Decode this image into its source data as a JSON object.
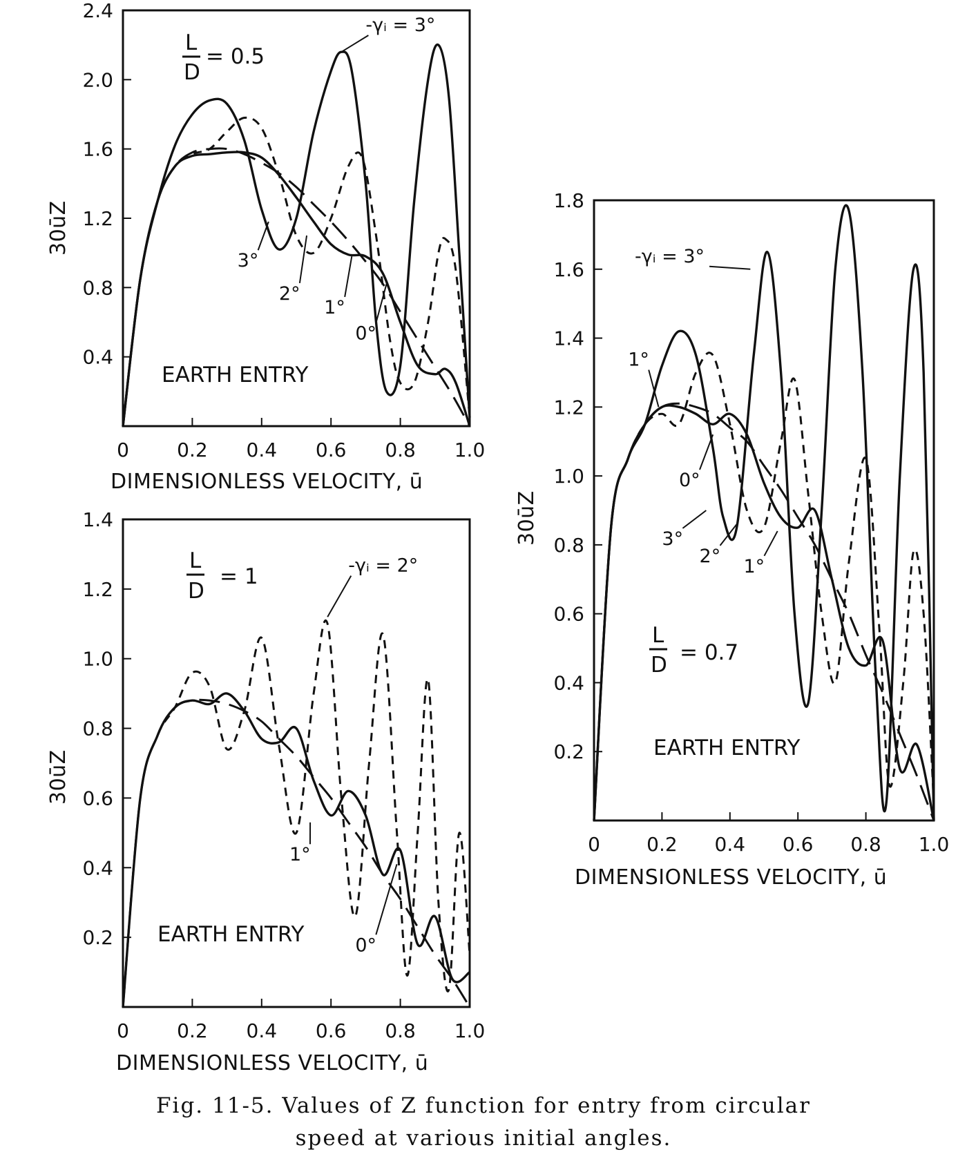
{
  "figure": {
    "caption_line1": "Fig. 11-5.  Values of Z function for entry from circular",
    "caption_line2": "speed at various initial angles."
  },
  "chart_data": [
    {
      "id": "ld05",
      "type": "line",
      "note": "EARTH ENTRY",
      "ld_value": "= 0.5",
      "xlabel": "DIMENSIONLESS VELOCITY, ū",
      "ylabel": "30ūZ",
      "xlim": [
        0,
        1.0
      ],
      "ylim": [
        0,
        2.4
      ],
      "xticks": [
        "0",
        "0.2",
        "0.4",
        "0.6",
        "0.8",
        "1.0"
      ],
      "yticks": [
        "0.4",
        "0.8",
        "1.2",
        "1.6",
        "2.0",
        "2.4"
      ],
      "series": [
        {
          "name": "3°",
          "style": "solid",
          "x": [
            0.0,
            0.05,
            0.1,
            0.15,
            0.2,
            0.25,
            0.3,
            0.35,
            0.4,
            0.45,
            0.5,
            0.55,
            0.6,
            0.63,
            0.66,
            0.7,
            0.73,
            0.76,
            0.8,
            0.84,
            0.88,
            0.91,
            0.94,
            0.97,
            1.0
          ],
          "y": [
            0.0,
            0.85,
            1.3,
            1.62,
            1.8,
            1.88,
            1.86,
            1.65,
            1.25,
            1.02,
            1.2,
            1.7,
            2.05,
            2.16,
            2.05,
            1.4,
            0.6,
            0.2,
            0.35,
            1.3,
            2.0,
            2.2,
            1.9,
            1.0,
            0.05
          ]
        },
        {
          "name": "2°",
          "style": "dashed",
          "x": [
            0.0,
            0.05,
            0.1,
            0.15,
            0.2,
            0.25,
            0.3,
            0.35,
            0.4,
            0.45,
            0.5,
            0.55,
            0.6,
            0.65,
            0.69,
            0.73,
            0.77,
            0.8,
            0.84,
            0.88,
            0.91,
            0.93,
            0.96,
            1.0
          ],
          "y": [
            0.0,
            0.85,
            1.3,
            1.5,
            1.57,
            1.6,
            1.7,
            1.78,
            1.72,
            1.45,
            1.1,
            1.0,
            1.2,
            1.5,
            1.55,
            1.1,
            0.5,
            0.25,
            0.25,
            0.6,
            1.0,
            1.08,
            0.9,
            0.05
          ]
        },
        {
          "name": "1°",
          "style": "solid",
          "x": [
            0.0,
            0.05,
            0.1,
            0.15,
            0.2,
            0.25,
            0.3,
            0.35,
            0.4,
            0.45,
            0.5,
            0.55,
            0.6,
            0.65,
            0.7,
            0.75,
            0.8,
            0.85,
            0.9,
            0.93,
            0.96,
            1.0
          ],
          "y": [
            0.0,
            0.85,
            1.3,
            1.5,
            1.56,
            1.57,
            1.58,
            1.58,
            1.55,
            1.45,
            1.32,
            1.18,
            1.05,
            0.99,
            0.98,
            0.88,
            0.6,
            0.35,
            0.3,
            0.33,
            0.25,
            0.0
          ]
        },
        {
          "name": "0°",
          "style": "longdash",
          "x": [
            0.0,
            0.05,
            0.1,
            0.15,
            0.2,
            0.25,
            0.3,
            0.35,
            0.4,
            0.45,
            0.5,
            0.55,
            0.6,
            0.65,
            0.7,
            0.75,
            0.8,
            0.85,
            0.9,
            0.95,
            1.0
          ],
          "y": [
            0.0,
            0.85,
            1.3,
            1.5,
            1.58,
            1.6,
            1.6,
            1.57,
            1.52,
            1.46,
            1.38,
            1.28,
            1.18,
            1.07,
            0.95,
            0.82,
            0.66,
            0.5,
            0.34,
            0.18,
            0.0
          ]
        }
      ],
      "annotations": [
        {
          "text": "-γᵢ = 3°",
          "x": 0.7,
          "y": 2.28,
          "tx": 0.63,
          "ty": 2.16
        },
        {
          "text": "3°",
          "x": 0.33,
          "y": 0.92,
          "tx": 0.42,
          "ty": 1.18
        },
        {
          "text": "2°",
          "x": 0.45,
          "y": 0.73,
          "tx": 0.53,
          "ty": 1.1
        },
        {
          "text": "1°",
          "x": 0.58,
          "y": 0.65,
          "tx": 0.66,
          "ty": 0.98
        },
        {
          "text": "0°",
          "x": 0.67,
          "y": 0.5,
          "tx": 0.76,
          "ty": 0.82
        }
      ]
    },
    {
      "id": "ld1",
      "type": "line",
      "note": "EARTH ENTRY",
      "ld_value": "= 1",
      "xlabel": "DIMENSIONLESS VELOCITY, ū",
      "ylabel": "30ūZ",
      "xlim": [
        0,
        1.0
      ],
      "ylim": [
        0,
        1.4
      ],
      "xticks": [
        "0",
        "0.2",
        "0.4",
        "0.6",
        "0.8",
        "1.0"
      ],
      "yticks": [
        "0.2",
        "0.4",
        "0.6",
        "0.8",
        "1.0",
        "1.2",
        "1.4"
      ],
      "series": [
        {
          "name": "2°",
          "style": "dashed",
          "x": [
            0.0,
            0.05,
            0.1,
            0.15,
            0.2,
            0.25,
            0.3,
            0.35,
            0.4,
            0.45,
            0.5,
            0.55,
            0.59,
            0.63,
            0.67,
            0.71,
            0.75,
            0.79,
            0.82,
            0.85,
            0.88,
            0.91,
            0.94,
            0.97,
            1.0
          ],
          "y": [
            0.0,
            0.6,
            0.78,
            0.86,
            0.96,
            0.92,
            0.74,
            0.85,
            1.06,
            0.75,
            0.5,
            0.9,
            1.1,
            0.6,
            0.26,
            0.7,
            1.07,
            0.5,
            0.09,
            0.5,
            0.94,
            0.3,
            0.05,
            0.5,
            0.15
          ]
        },
        {
          "name": "1°",
          "style": "solid",
          "x": [
            0.0,
            0.05,
            0.1,
            0.15,
            0.2,
            0.25,
            0.3,
            0.35,
            0.4,
            0.45,
            0.5,
            0.55,
            0.6,
            0.65,
            0.7,
            0.75,
            0.8,
            0.85,
            0.9,
            0.95,
            1.0
          ],
          "y": [
            0.0,
            0.6,
            0.78,
            0.86,
            0.88,
            0.87,
            0.9,
            0.85,
            0.77,
            0.76,
            0.8,
            0.65,
            0.55,
            0.62,
            0.55,
            0.38,
            0.45,
            0.18,
            0.26,
            0.08,
            0.1
          ]
        },
        {
          "name": "0°",
          "style": "longdash",
          "x": [
            0.0,
            0.05,
            0.1,
            0.15,
            0.2,
            0.25,
            0.3,
            0.35,
            0.4,
            0.45,
            0.5,
            0.55,
            0.6,
            0.65,
            0.7,
            0.75,
            0.8,
            0.85,
            0.9,
            0.95,
            1.0
          ],
          "y": [
            0.0,
            0.6,
            0.78,
            0.86,
            0.88,
            0.88,
            0.87,
            0.85,
            0.82,
            0.77,
            0.72,
            0.66,
            0.6,
            0.53,
            0.46,
            0.38,
            0.31,
            0.23,
            0.15,
            0.08,
            0.0
          ]
        }
      ],
      "annotations": [
        {
          "text": "-γᵢ = 2°",
          "x": 0.65,
          "y": 1.25,
          "tx": 0.59,
          "ty": 1.12
        },
        {
          "text": "1°",
          "x": 0.48,
          "y": 0.42,
          "tx": 0.54,
          "ty": 0.53
        },
        {
          "text": "0°",
          "x": 0.67,
          "y": 0.16,
          "tx": 0.79,
          "ty": 0.41
        }
      ]
    },
    {
      "id": "ld07",
      "type": "line",
      "note": "EARTH ENTRY",
      "ld_value": "= 0.7",
      "xlabel": "DIMENSIONLESS VELOCITY, ū",
      "ylabel": "30ūZ",
      "xlim": [
        0,
        1.0
      ],
      "ylim": [
        0,
        1.8
      ],
      "xticks": [
        "0",
        "0.2",
        "0.4",
        "0.6",
        "0.8",
        "1.0"
      ],
      "yticks": [
        "0.2",
        "0.4",
        "0.6",
        "0.8",
        "1.0",
        "1.2",
        "1.4",
        "1.6",
        "1.8"
      ],
      "series": [
        {
          "name": "3°",
          "style": "solid",
          "x": [
            0.0,
            0.05,
            0.1,
            0.15,
            0.2,
            0.25,
            0.3,
            0.35,
            0.38,
            0.42,
            0.47,
            0.51,
            0.55,
            0.59,
            0.63,
            0.67,
            0.71,
            0.75,
            0.79,
            0.83,
            0.86,
            0.9,
            0.94,
            0.97,
            1.0
          ],
          "y": [
            0.0,
            0.85,
            1.05,
            1.15,
            1.32,
            1.42,
            1.35,
            1.08,
            0.88,
            0.85,
            1.35,
            1.65,
            1.3,
            0.6,
            0.34,
            0.9,
            1.6,
            1.77,
            1.3,
            0.4,
            0.05,
            1.0,
            1.6,
            1.3,
            0.0
          ]
        },
        {
          "name": "2°",
          "style": "dashed",
          "x": [
            0.0,
            0.05,
            0.1,
            0.15,
            0.2,
            0.25,
            0.3,
            0.35,
            0.4,
            0.45,
            0.5,
            0.55,
            0.59,
            0.63,
            0.67,
            0.71,
            0.75,
            0.8,
            0.84,
            0.87,
            0.91,
            0.94,
            0.97,
            1.0
          ],
          "y": [
            0.0,
            0.85,
            1.05,
            1.15,
            1.18,
            1.15,
            1.3,
            1.35,
            1.15,
            0.9,
            0.85,
            1.1,
            1.28,
            0.95,
            0.6,
            0.4,
            0.75,
            1.05,
            0.55,
            0.1,
            0.4,
            0.78,
            0.6,
            0.05
          ]
        },
        {
          "name": "1°",
          "style": "solid",
          "x": [
            0.0,
            0.05,
            0.1,
            0.15,
            0.2,
            0.25,
            0.3,
            0.35,
            0.4,
            0.45,
            0.5,
            0.55,
            0.6,
            0.65,
            0.7,
            0.75,
            0.8,
            0.85,
            0.9,
            0.95,
            1.0
          ],
          "y": [
            0.0,
            0.85,
            1.05,
            1.15,
            1.2,
            1.2,
            1.18,
            1.15,
            1.18,
            1.12,
            0.98,
            0.88,
            0.85,
            0.9,
            0.7,
            0.5,
            0.45,
            0.52,
            0.15,
            0.22,
            0.0
          ]
        },
        {
          "name": "0°",
          "style": "longdash",
          "x": [
            0.0,
            0.05,
            0.1,
            0.15,
            0.2,
            0.25,
            0.3,
            0.35,
            0.4,
            0.45,
            0.5,
            0.55,
            0.6,
            0.65,
            0.7,
            0.75,
            0.8,
            0.85,
            0.9,
            0.95,
            1.0
          ],
          "y": [
            0.0,
            0.85,
            1.05,
            1.15,
            1.2,
            1.21,
            1.2,
            1.18,
            1.14,
            1.1,
            1.03,
            0.96,
            0.88,
            0.8,
            0.7,
            0.6,
            0.48,
            0.37,
            0.25,
            0.13,
            0.0
          ]
        }
      ],
      "annotations": [
        {
          "text": "-γᵢ = 3°",
          "x": 0.12,
          "y": 1.62,
          "tx": 0.46,
          "ty": 1.6
        },
        {
          "text": "1°",
          "x": 0.1,
          "y": 1.32,
          "tx": 0.19,
          "ty": 1.2
        },
        {
          "text": "0°",
          "x": 0.25,
          "y": 0.97,
          "tx": 0.35,
          "ty": 1.12
        },
        {
          "text": "3°",
          "x": 0.2,
          "y": 0.8,
          "tx": 0.33,
          "ty": 0.9
        },
        {
          "text": "2°",
          "x": 0.31,
          "y": 0.75,
          "tx": 0.42,
          "ty": 0.86
        },
        {
          "text": "1°",
          "x": 0.44,
          "y": 0.72,
          "tx": 0.54,
          "ty": 0.84
        }
      ]
    }
  ]
}
